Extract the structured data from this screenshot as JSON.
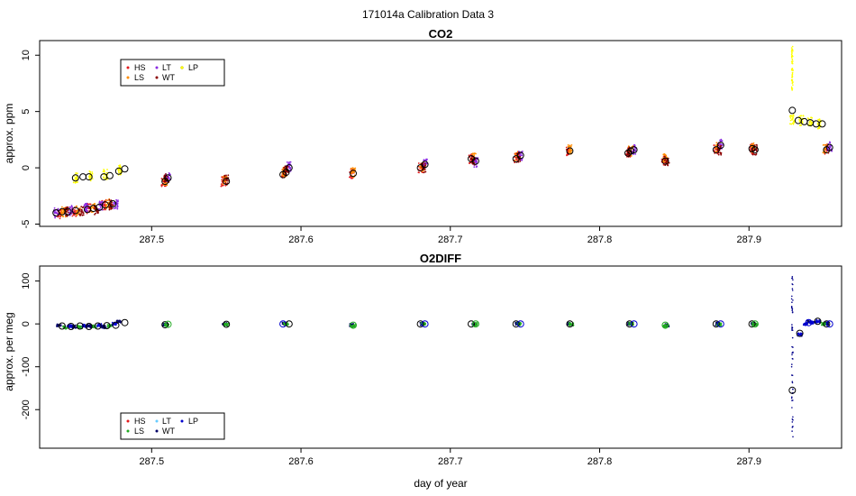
{
  "figure_title": "171014a   Calibration Data 3",
  "xlabel": "day of year",
  "chart_data": [
    {
      "type": "scatter",
      "title": "CO2",
      "ylabel": "approx. ppm",
      "xlim": [
        287.425,
        287.962
      ],
      "ylim": [
        -5.2,
        11.3
      ],
      "xticks": [
        287.5,
        287.6,
        287.7,
        287.8,
        287.9
      ],
      "xtick_labels": [
        "287.5",
        "287.6",
        "287.7",
        "287.8",
        "287.9"
      ],
      "yticks": [
        -5,
        0,
        5,
        10
      ],
      "ytick_labels": [
        "-5",
        "0",
        "5",
        "10"
      ],
      "grid": false,
      "legend_placement": "top-left",
      "legend": [
        {
          "label": "HS",
          "color": "#e31a1c"
        },
        {
          "label": "LS",
          "color": "#ff8c00"
        },
        {
          "label": "LT",
          "color": "#8a2be2"
        },
        {
          "label": "WT",
          "color": "#8b0000"
        },
        {
          "label": "LP",
          "color": "#ffff00"
        }
      ],
      "series": [
        {
          "name": "HS",
          "x": [
            287.438,
            287.448,
            287.458,
            287.468,
            287.508,
            287.548,
            287.588,
            287.634,
            287.68,
            287.714,
            287.744,
            287.779,
            287.819,
            287.843,
            287.878,
            287.902,
            287.952
          ],
          "y": [
            -4.1,
            -3.9,
            -3.6,
            -3.3,
            -1.2,
            -1.2,
            -0.5,
            -0.5,
            0.0,
            0.8,
            0.9,
            1.5,
            1.4,
            0.7,
            1.7,
            1.7,
            1.6
          ]
        },
        {
          "name": "LS",
          "x": [
            287.441,
            287.451,
            287.461,
            287.471,
            287.509,
            287.549,
            287.589,
            287.635,
            287.681,
            287.716,
            287.745,
            287.78,
            287.821,
            287.844,
            287.879,
            287.903,
            287.951
          ],
          "y": [
            -3.9,
            -3.8,
            -3.5,
            -3.2,
            -1.1,
            -1.1,
            -0.4,
            -0.4,
            0.1,
            0.9,
            1.0,
            1.6,
            1.5,
            0.8,
            1.8,
            1.8,
            1.7
          ]
        },
        {
          "name": "LT",
          "x": [
            287.436,
            287.446,
            287.456,
            287.466,
            287.476,
            287.511,
            287.592,
            287.683,
            287.717,
            287.747,
            287.823,
            287.881,
            287.954
          ],
          "y": [
            -4.0,
            -3.8,
            -3.6,
            -3.4,
            -3.2,
            -0.9,
            0.1,
            0.4,
            0.5,
            1.1,
            1.6,
            2.1,
            1.9
          ]
        },
        {
          "name": "WT",
          "x": [
            287.443,
            287.453,
            287.463,
            287.473,
            287.51,
            287.55,
            287.59,
            287.682,
            287.715,
            287.746,
            287.82,
            287.845,
            287.88,
            287.904
          ],
          "y": [
            -3.9,
            -3.9,
            -3.7,
            -3.3,
            -1.0,
            -1.1,
            -0.3,
            0.0,
            0.7,
            0.9,
            1.4,
            0.6,
            1.6,
            1.6
          ]
        },
        {
          "name": "LP",
          "x": [
            287.449,
            287.459,
            287.469,
            287.479,
            287.929,
            287.935,
            287.941,
            287.947
          ],
          "y": [
            -0.9,
            -0.7,
            -0.6,
            -0.2,
            4.3,
            4.2,
            4.1,
            3.9
          ]
        }
      ],
      "circle_markers": {
        "x": [
          287.436,
          287.44,
          287.444,
          287.449,
          287.457,
          287.461,
          287.465,
          287.469,
          287.474,
          287.478,
          287.482,
          287.509,
          287.511,
          287.55,
          287.588,
          287.59,
          287.592,
          287.635,
          287.68,
          287.683,
          287.714,
          287.717,
          287.744,
          287.747,
          287.78,
          287.819,
          287.821,
          287.823,
          287.844,
          287.878,
          287.881,
          287.902,
          287.904,
          287.929,
          287.933,
          287.937,
          287.941,
          287.945,
          287.949,
          287.952,
          287.954
        ],
        "y": [
          -4.0,
          -3.9,
          -3.9,
          -3.8,
          -3.7,
          -3.6,
          -3.5,
          -3.3,
          -3.2,
          -0.3,
          -0.1,
          -1.2,
          -0.9,
          -1.2,
          -0.6,
          -0.4,
          0.0,
          -0.5,
          0.0,
          0.3,
          0.8,
          0.6,
          0.8,
          1.1,
          1.5,
          1.3,
          1.5,
          1.6,
          0.6,
          1.6,
          2.0,
          1.7,
          1.6,
          5.1,
          4.2,
          4.1,
          4.0,
          3.9,
          3.9,
          1.6,
          1.8
        ]
      },
      "lp_circles": {
        "x": [
          287.449,
          287.454,
          287.458,
          287.468,
          287.472
        ],
        "y": [
          -0.9,
          -0.8,
          -0.8,
          -0.8,
          -0.7
        ]
      },
      "spike": {
        "x": 287.929,
        "y_min": 6.8,
        "y_max": 10.8
      }
    },
    {
      "type": "scatter",
      "title": "O2DIFF",
      "ylabel": "approx. per meg",
      "xlim": [
        287.425,
        287.962
      ],
      "ylim": [
        -290,
        135
      ],
      "xticks": [
        287.5,
        287.6,
        287.7,
        287.8,
        287.9
      ],
      "xtick_labels": [
        "287.5",
        "287.6",
        "287.7",
        "287.8",
        "287.9"
      ],
      "yticks": [
        -200,
        -100,
        0,
        100
      ],
      "ytick_labels": [
        "-200",
        "-100",
        "0",
        "100"
      ],
      "grid": false,
      "legend_placement": "bottom-left",
      "legend": [
        {
          "label": "HS",
          "color": "#e31a1c"
        },
        {
          "label": "LS",
          "color": "#22aa22"
        },
        {
          "label": "LT",
          "color": "#66ccff"
        },
        {
          "label": "WT",
          "color": "#000066"
        },
        {
          "label": "LP",
          "color": "#0000cd"
        }
      ],
      "series": [
        {
          "name": "WT",
          "x": [
            287.438,
            287.448,
            287.458,
            287.468,
            287.478,
            287.509,
            287.549,
            287.589,
            287.634,
            287.681,
            287.716,
            287.745,
            287.78,
            287.82,
            287.845,
            287.879,
            287.903,
            287.94,
            287.952
          ],
          "y": [
            -4,
            -6,
            -5,
            -7,
            5,
            -2,
            -1,
            0,
            -3,
            0,
            -1,
            0,
            0,
            0,
            -3,
            0,
            0,
            5,
            0
          ]
        },
        {
          "name": "LS",
          "x": [
            287.442,
            287.452,
            287.462,
            287.472,
            287.51,
            287.55,
            287.59,
            287.635,
            287.682,
            287.717,
            287.746,
            287.781,
            287.821,
            287.844,
            287.88,
            287.904,
            287.95
          ],
          "y": [
            -8,
            -7,
            -6,
            -5,
            -3,
            -2,
            -1,
            -5,
            0,
            -1,
            0,
            -1,
            0,
            -5,
            -1,
            -1,
            0
          ]
        },
        {
          "name": "LP",
          "x": [
            287.445,
            287.455,
            287.465,
            287.475,
            287.934,
            287.938,
            287.942,
            287.946
          ],
          "y": [
            -5,
            -4,
            -3,
            0,
            -25,
            0,
            3,
            6
          ]
        }
      ],
      "circle_markers": {
        "x": [
          287.44,
          287.446,
          287.452,
          287.458,
          287.464,
          287.47,
          287.476,
          287.482,
          287.509,
          287.511,
          287.55,
          287.588,
          287.592,
          287.635,
          287.68,
          287.683,
          287.714,
          287.717,
          287.744,
          287.747,
          287.78,
          287.82,
          287.823,
          287.844,
          287.878,
          287.881,
          287.902,
          287.904,
          287.929,
          287.934,
          287.94,
          287.946,
          287.952,
          287.954
        ],
        "y": [
          -5,
          -6,
          -5,
          -6,
          -5,
          -4,
          -3,
          3,
          -2,
          -1,
          -1,
          0,
          0,
          -3,
          0,
          0,
          0,
          0,
          0,
          0,
          0,
          0,
          0,
          -3,
          0,
          0,
          0,
          0,
          -155,
          -22,
          3,
          6,
          0,
          0
        ],
        "colors": [
          "#000",
          "#000",
          "#000",
          "#000",
          "#000",
          "#000",
          "#000",
          "#000",
          "#000",
          "#22aa22",
          "#000",
          "#0000cd",
          "#000",
          "#22aa22",
          "#000",
          "#0000cd",
          "#000",
          "#22aa22",
          "#000",
          "#0000cd",
          "#000",
          "#000",
          "#0000cd",
          "#22aa22",
          "#000",
          "#0000cd",
          "#000",
          "#22aa22",
          "#000",
          "#000",
          "#0000cd",
          "#000",
          "#000",
          "#0000cd"
        ]
      },
      "spike": {
        "x": 287.929,
        "y_min": -275,
        "y_max": 130
      }
    }
  ]
}
